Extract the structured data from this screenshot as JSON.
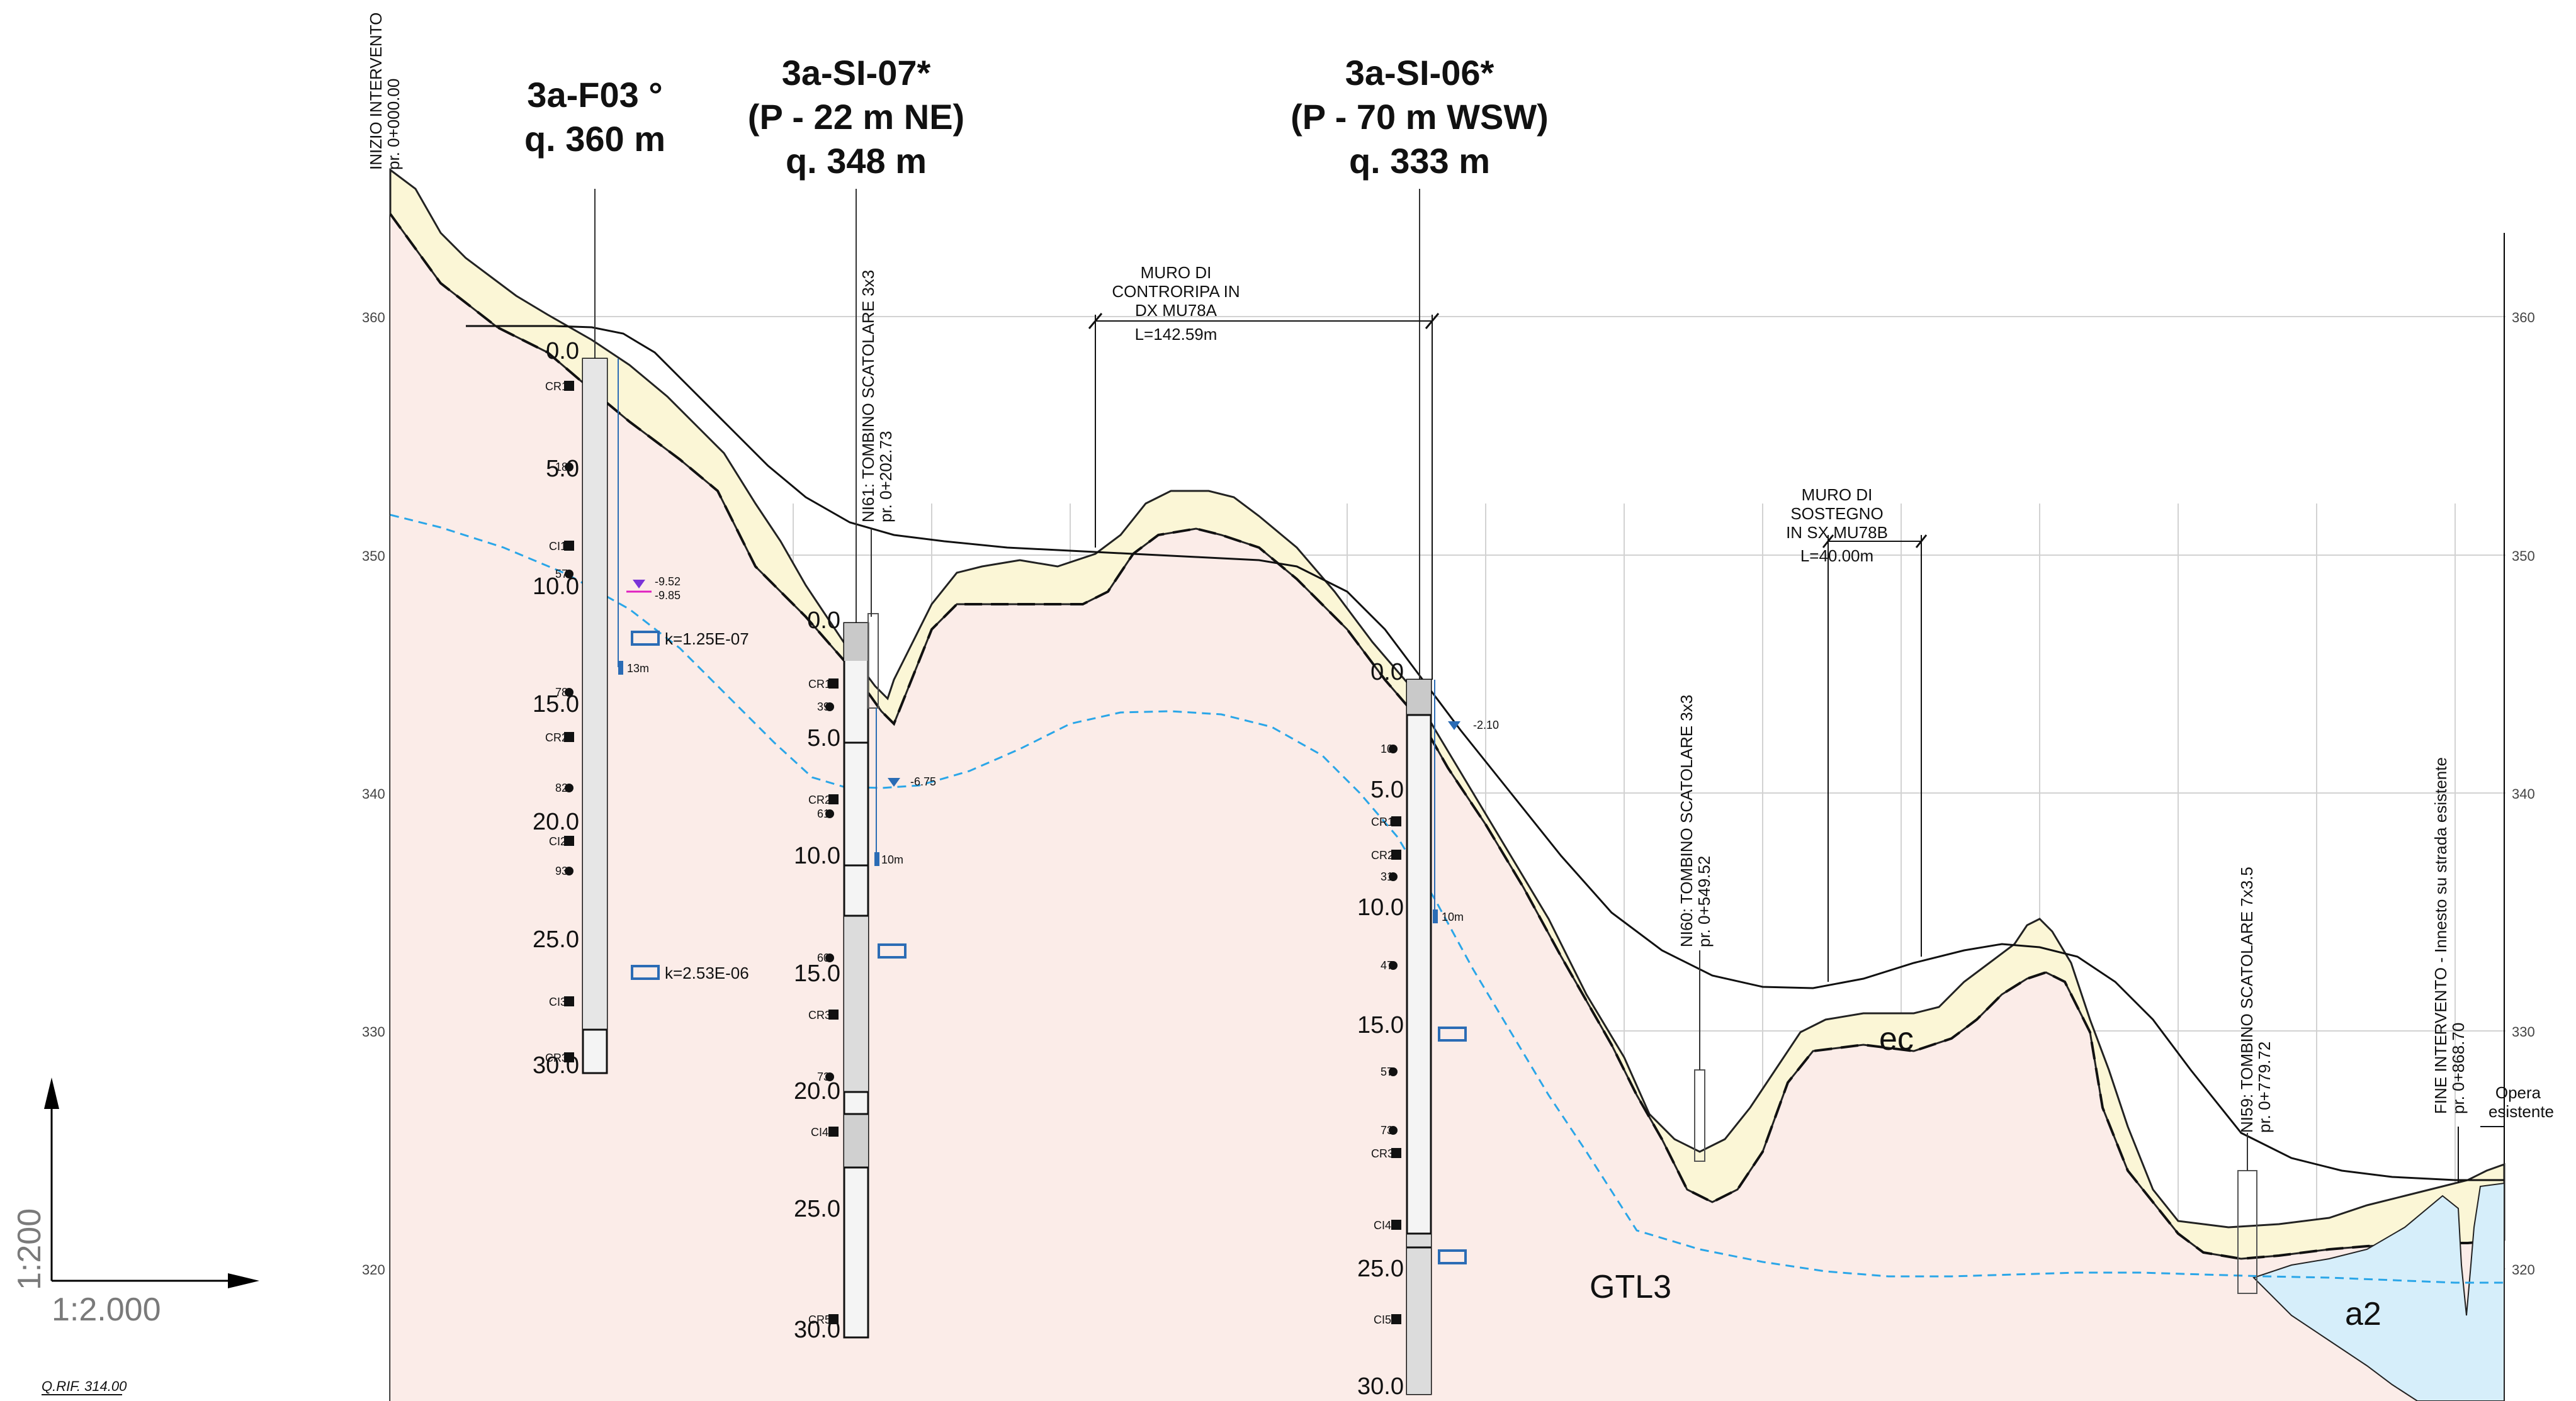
{
  "colors": {
    "ground_fill": "#fbece8",
    "ec_fill": "#fbf6d6",
    "a2_fill": "#d6eefa",
    "water_line": "#2aa6e8",
    "frame_blue": "#2b6cb5",
    "magenta": "#e020c0",
    "grid": "#cfcfcf"
  },
  "boreholes": [
    {
      "id": "3a-F03 °",
      "note": "",
      "elev": "q. 360 m"
    },
    {
      "id": "3a-SI-07*",
      "note": "(P - 22 m NE)",
      "elev": "q. 348 m"
    },
    {
      "id": "3a-SI-06*",
      "note": "(P - 70 m WSW)",
      "elev": "q. 333 m"
    }
  ],
  "start_label": {
    "line1": "INIZIO INTERVENTO",
    "line2": "pr. 0+000.00"
  },
  "end_label": {
    "line1": "FINE INTERVENTO - Innesto su strada esistente",
    "line2": "pr. 0+868.70"
  },
  "opera_label": {
    "line1": "Opera",
    "line2": "esistente"
  },
  "culverts": [
    {
      "line1": "NI61: TOMBINO SCATOLARE 3x3",
      "line2": "pr. 0+202.73"
    },
    {
      "line1": "NI60: TOMBINO SCATOLARE 3x3",
      "line2": "pr. 0+549.52"
    },
    {
      "line1": "NI59: TOMBINO SCATOLARE 7x3.5",
      "line2": "pr. 0+779.72"
    }
  ],
  "walls": [
    {
      "lines": [
        "MURO DI",
        "CONTRORIPA IN",
        "DX MU78A",
        "L=142.59m"
      ]
    },
    {
      "lines": [
        "MURO DI",
        "SOSTEGNO",
        "IN SX MU78B",
        "L=40.00m"
      ]
    }
  ],
  "elevation_ticks": [
    "360",
    "350",
    "340",
    "330",
    "320"
  ],
  "depth_ticks": [
    "0.0",
    "5.0",
    "10.0",
    "15.0",
    "20.0",
    "25.0",
    "30.0"
  ],
  "permeability": [
    "k=1.25E-07",
    "k=2.53E-06"
  ],
  "water_marks": [
    "-9.52",
    "-9.85",
    "-6.75",
    "-2.10"
  ],
  "piezo_labels": [
    "13m",
    "10m",
    "10m"
  ],
  "samples_f03": [
    "CR1",
    "CI1",
    "CR2",
    "CI2",
    "CI3",
    "CR3"
  ],
  "spt_f03": [
    "18",
    "57",
    "78",
    "82",
    "93"
  ],
  "samples_si07": [
    "CR1",
    "CR2",
    "CR3",
    "CI4",
    "CR5"
  ],
  "spt_si07": [
    "39",
    "61",
    "60",
    "73"
  ],
  "samples_si06": [
    "CR1",
    "CR2",
    "CR3",
    "CI4",
    "CI5"
  ],
  "spt_si06": [
    "10",
    "31",
    "47",
    "57",
    "73"
  ],
  "zones": [
    "ec",
    "GTL3",
    "a2"
  ],
  "scale_vertical": "1:200",
  "scale_horizontal": "1:2.000",
  "reference": "Q.RIF. 314.00"
}
